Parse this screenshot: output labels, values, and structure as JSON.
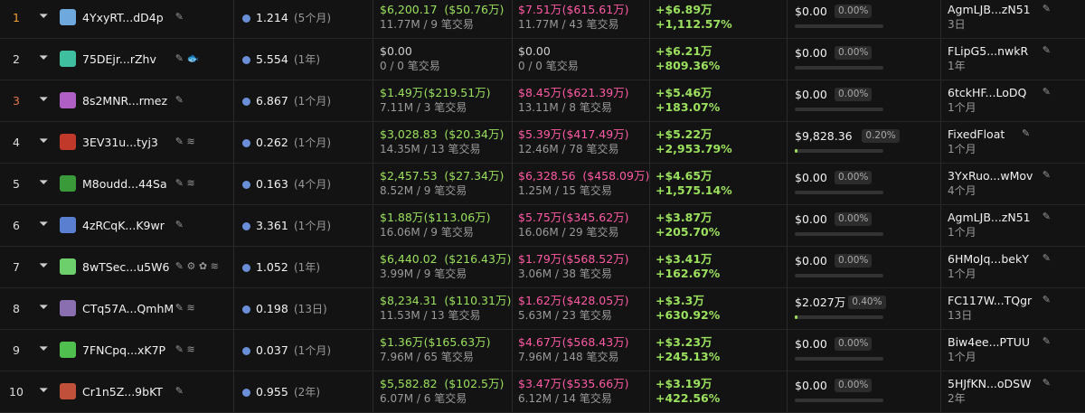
{
  "table": {
    "rows": [
      {
        "rank": "1",
        "wallet": "4YxyRT...dD4p",
        "balance": "1.214",
        "balance_age": "(5个月)",
        "bought": "$6,200.17",
        "bought_usd": "($50.76万)",
        "bought_detail": "11.77M / 9 笔交易",
        "sold": "$7.51万",
        "sold_usd": "($615.61万)",
        "sold_detail": "11.77M / 43 笔交易",
        "pnl": "+$6.89万",
        "pnl_pct": "+1,112.57%",
        "remaining": "$0.00",
        "remaining_pct": "0.00%",
        "funding": "AgmLJB...zN51",
        "funding_age": "3日"
      },
      {
        "rank": "2",
        "wallet": "75DEjr...rZhv",
        "balance": "5.554",
        "balance_age": "(1年)",
        "bought": "$0.00",
        "bought_detail": "0 / 0 笔交易",
        "sold": "$0.00",
        "sold_detail": "0 / 0 笔交易",
        "pnl": "+$6.21万",
        "pnl_pct": "+809.36%",
        "remaining": "$0.00",
        "remaining_pct": "0.00%",
        "funding": "FLipG5...nwkR",
        "funding_age": "1年"
      },
      {
        "rank": "3",
        "wallet": "8s2MNR...rmez",
        "balance": "6.867",
        "balance_age": "(1个月)",
        "bought": "$1.49万",
        "bought_usd": "($219.51万)",
        "bought_detail": "7.11M / 3 笔交易",
        "sold": "$8.45万",
        "sold_usd": "($621.39万)",
        "sold_detail": "13.11M / 8 笔交易",
        "pnl": "+$5.46万",
        "pnl_pct": "+183.07%",
        "remaining": "$0.00",
        "remaining_pct": "0.00%",
        "funding": "6tckHF...LoDQ",
        "funding_age": "1个月"
      },
      {
        "rank": "4",
        "wallet": "3EV31u...tyj3",
        "balance": "0.262",
        "balance_age": "(1个月)",
        "bought": "$3,028.83",
        "bought_usd": "($20.34万)",
        "bought_detail": "14.35M / 13 笔交易",
        "sold": "$5.39万",
        "sold_usd": "($417.49万)",
        "sold_detail": "12.46M / 78 笔交易",
        "pnl": "+$5.22万",
        "pnl_pct": "+2,953.79%",
        "remaining": "$9,828.36",
        "remaining_pct": "0.20%",
        "funding": "FixedFloat",
        "funding_age": "1个月"
      },
      {
        "rank": "5",
        "wallet": "M8oudd...44Sa",
        "balance": "0.163",
        "balance_age": "(4个月)",
        "bought": "$2,457.53",
        "bought_usd": "($27.34万)",
        "bought_detail": "8.52M / 9 笔交易",
        "sold": "$6,328.56",
        "sold_usd": "($458.09万)",
        "sold_detail": "1.25M / 15 笔交易",
        "pnl": "+$4.65万",
        "pnl_pct": "+1,575.14%",
        "remaining": "$0.00",
        "remaining_pct": "0.00%",
        "funding": "3YxRuo...wMov",
        "funding_age": "4个月"
      },
      {
        "rank": "6",
        "wallet": "4zRCqK...K9wr",
        "balance": "3.361",
        "balance_age": "(1个月)",
        "bought": "$1.88万",
        "bought_usd": "($113.06万)",
        "bought_detail": "16.06M / 9 笔交易",
        "sold": "$5.75万",
        "sold_usd": "($345.62万)",
        "sold_detail": "16.06M / 29 笔交易",
        "pnl": "+$3.87万",
        "pnl_pct": "+205.70%",
        "remaining": "$0.00",
        "remaining_pct": "0.00%",
        "funding": "AgmLJB...zN51",
        "funding_age": "1个月"
      },
      {
        "rank": "7",
        "wallet": "8wTSec...u5W6",
        "balance": "1.052",
        "balance_age": "(1年)",
        "bought": "$6,440.02",
        "bought_usd": "($216.43万)",
        "bought_detail": "3.99M / 9 笔交易",
        "sold": "$1.79万",
        "sold_usd": "($568.52万)",
        "sold_detail": "3.06M / 38 笔交易",
        "pnl": "+$3.41万",
        "pnl_pct": "+162.67%",
        "remaining": "$0.00",
        "remaining_pct": "0.00%",
        "funding": "6HMoJq...bekY",
        "funding_age": "1个月"
      },
      {
        "rank": "8",
        "wallet": "CTq57A...QmhM",
        "balance": "0.198",
        "balance_age": "(13日)",
        "bought": "$8,234.31",
        "bought_usd": "($110.31万)",
        "bought_detail": "11.53M / 13 笔交易",
        "sold": "$1.62万",
        "sold_usd": "($428.05万)",
        "sold_detail": "5.63M / 23 笔交易",
        "pnl": "+$3.3万",
        "pnl_pct": "+630.92%",
        "remaining": "$2.027万",
        "remaining_pct": "0.40%",
        "funding": "FC117W...TQgr",
        "funding_age": "13日"
      },
      {
        "rank": "9",
        "wallet": "7FNCpq...xK7P",
        "balance": "0.037",
        "balance_age": "(1个月)",
        "bought": "$1.36万",
        "bought_usd": "($165.63万)",
        "bought_detail": "7.96M / 65 笔交易",
        "sold": "$4.67万",
        "sold_usd": "($568.43万)",
        "sold_detail": "7.96M / 148 笔交易",
        "pnl": "+$3.23万",
        "pnl_pct": "+245.13%",
        "remaining": "$0.00",
        "remaining_pct": "0.00%",
        "funding": "Biw4ee...PTUU",
        "funding_age": "1个月"
      },
      {
        "rank": "10",
        "wallet": "Cr1n5Z...9bKT",
        "balance": "0.955",
        "balance_age": "(2年)",
        "bought": "$5,582.82",
        "bought_usd": "($102.5万)",
        "bought_detail": "6.07M / 6 笔交易",
        "sold": "$3.47万",
        "sold_usd": "($535.66万)",
        "sold_detail": "6.12M / 14 笔交易",
        "pnl": "+$3.19万",
        "pnl_pct": "+422.56%",
        "remaining": "$0.00",
        "remaining_pct": "0.00%",
        "funding": "5HJfKN...oDSW",
        "funding_age": "2年"
      }
    ]
  }
}
